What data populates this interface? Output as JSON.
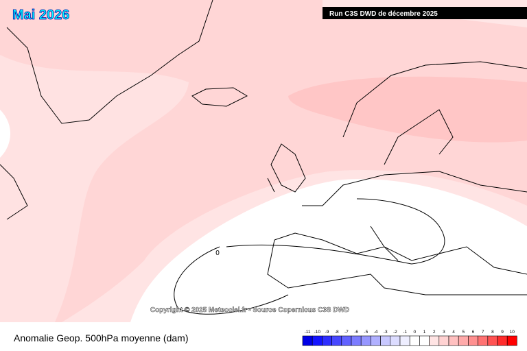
{
  "header": {
    "title": "Mai 2026",
    "run": "Run C3S DWD de décembre 2025"
  },
  "map": {
    "contour_label": "0",
    "copyright": "Copyright © 2025 Meteociel.fr - Source Copernicus C3S DWD"
  },
  "footer": {
    "caption": "Anomalie Geop. 500hPa moyenne (dam)"
  },
  "colorbar": {
    "ticks": [
      -11,
      -10,
      -9,
      -8,
      -7,
      -6,
      -5,
      -4,
      -3,
      -2,
      -1,
      0,
      1,
      2,
      3,
      4,
      5,
      6,
      7,
      8,
      9,
      10
    ],
    "colors": [
      "#0000e6",
      "#1414ff",
      "#2e2eff",
      "#4848ff",
      "#6262ff",
      "#7c7cff",
      "#9696ff",
      "#b0b0ff",
      "#c8c8ff",
      "#dcdcff",
      "#eeeeff",
      "#ffffff",
      "#ffffff",
      "#ffe4e4",
      "#ffd2d2",
      "#ffc0c0",
      "#ffaaaa",
      "#ff9090",
      "#ff7272",
      "#ff5252",
      "#ff2c2c",
      "#ff0000"
    ]
  }
}
